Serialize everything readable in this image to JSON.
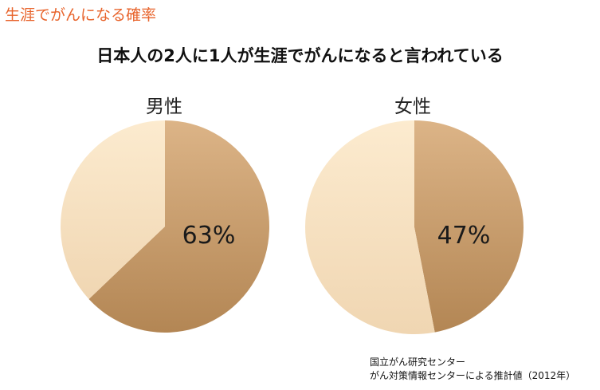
{
  "header": {
    "title": "生涯でがんになる確率"
  },
  "main_title": "日本人の2人に1人が生涯でがんになると言われている",
  "source": {
    "line1": "国立がん研究センター",
    "line2": "がん対策情報センターによる推計値（2012年）"
  },
  "colors": {
    "header": "#e8642c",
    "value_slice_light": "#dcb487",
    "value_slice_dark": "#b38654",
    "remainder_slice_light": "#fcebcf",
    "remainder_slice_dark": "#f0d6b2"
  },
  "chart_data": [
    {
      "type": "pie",
      "title": "男性",
      "value_label": "63%",
      "slices": [
        {
          "value": 63
        },
        {
          "value": 37
        }
      ]
    },
    {
      "type": "pie",
      "title": "女性",
      "value_label": "47%",
      "slices": [
        {
          "value": 47
        },
        {
          "value": 53
        }
      ]
    }
  ]
}
